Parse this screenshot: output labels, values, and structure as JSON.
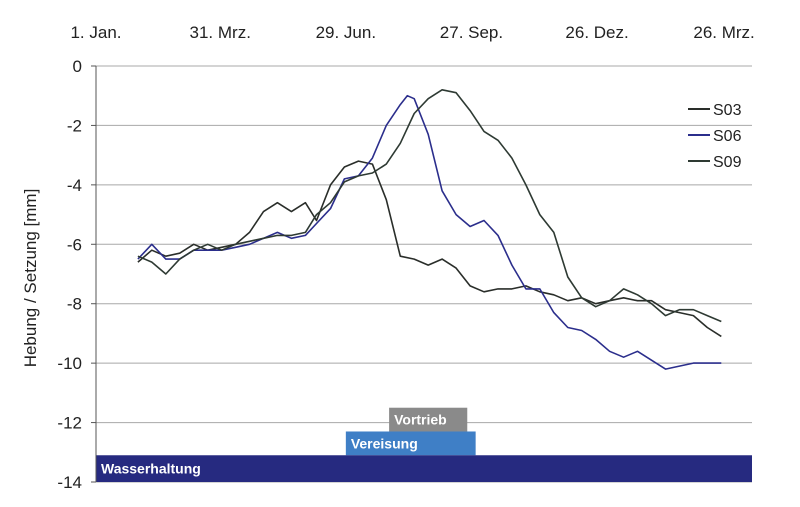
{
  "chart_data": {
    "type": "line",
    "title": "",
    "xlabel": "",
    "ylabel": "Hebung / Setzung [mm]",
    "ylim": [
      -14,
      0
    ],
    "yticks": [
      0,
      -2,
      -4,
      -6,
      -8,
      -10,
      -12,
      -14
    ],
    "xlim": [
      "2011-01-01",
      "2012-04-15"
    ],
    "xticks": [
      {
        "date": "2011-01-01",
        "label": "1. Jan."
      },
      {
        "date": "2011-03-31",
        "label": "31. Mrz."
      },
      {
        "date": "2011-06-29",
        "label": "29. Jun."
      },
      {
        "date": "2011-09-27",
        "label": "27. Sep."
      },
      {
        "date": "2011-12-26",
        "label": "26. Dez."
      },
      {
        "date": "2012-03-26",
        "label": "26. Mrz."
      }
    ],
    "xaxis_position": "top",
    "grid": "horizontal",
    "legend_position": "top-right",
    "series": [
      {
        "name": "S03",
        "color": "#2a2e2a",
        "points": [
          [
            "2011-01-31",
            -6.6
          ],
          [
            "2011-02-10",
            -6.2
          ],
          [
            "2011-02-20",
            -6.4
          ],
          [
            "2011-03-02",
            -6.3
          ],
          [
            "2011-03-12",
            -6.0
          ],
          [
            "2011-03-22",
            -6.2
          ],
          [
            "2011-04-01",
            -6.1
          ],
          [
            "2011-04-11",
            -6.0
          ],
          [
            "2011-04-21",
            -5.6
          ],
          [
            "2011-05-01",
            -4.9
          ],
          [
            "2011-05-11",
            -4.6
          ],
          [
            "2011-05-21",
            -4.9
          ],
          [
            "2011-05-31",
            -4.6
          ],
          [
            "2011-06-08",
            -5.2
          ],
          [
            "2011-06-18",
            -4.0
          ],
          [
            "2011-06-28",
            -3.4
          ],
          [
            "2011-07-08",
            -3.2
          ],
          [
            "2011-07-18",
            -3.3
          ],
          [
            "2011-07-28",
            -4.5
          ],
          [
            "2011-08-07",
            -6.4
          ],
          [
            "2011-08-17",
            -6.5
          ],
          [
            "2011-08-27",
            -6.7
          ],
          [
            "2011-09-06",
            -6.5
          ],
          [
            "2011-09-16",
            -6.8
          ],
          [
            "2011-09-26",
            -7.4
          ],
          [
            "2011-10-06",
            -7.6
          ],
          [
            "2011-10-16",
            -7.5
          ],
          [
            "2011-10-26",
            -7.5
          ],
          [
            "2011-11-05",
            -7.4
          ],
          [
            "2011-11-15",
            -7.6
          ],
          [
            "2011-11-25",
            -7.7
          ],
          [
            "2011-12-05",
            -7.9
          ],
          [
            "2011-12-15",
            -7.8
          ],
          [
            "2011-12-25",
            -8.0
          ],
          [
            "2012-01-04",
            -7.9
          ],
          [
            "2012-01-14",
            -7.8
          ],
          [
            "2012-01-24",
            -7.9
          ],
          [
            "2012-02-03",
            -7.9
          ],
          [
            "2012-02-13",
            -8.2
          ],
          [
            "2012-02-23",
            -8.3
          ],
          [
            "2012-03-04",
            -8.4
          ],
          [
            "2012-03-14",
            -8.8
          ],
          [
            "2012-03-24",
            -9.1
          ]
        ]
      },
      {
        "name": "S06",
        "color": "#2b2e8c",
        "points": [
          [
            "2011-01-31",
            -6.5
          ],
          [
            "2011-02-10",
            -6.0
          ],
          [
            "2011-02-20",
            -6.5
          ],
          [
            "2011-03-02",
            -6.5
          ],
          [
            "2011-03-12",
            -6.2
          ],
          [
            "2011-03-22",
            -6.2
          ],
          [
            "2011-04-01",
            -6.2
          ],
          [
            "2011-04-11",
            -6.1
          ],
          [
            "2011-04-21",
            -6.0
          ],
          [
            "2011-05-01",
            -5.8
          ],
          [
            "2011-05-11",
            -5.6
          ],
          [
            "2011-05-21",
            -5.8
          ],
          [
            "2011-05-31",
            -5.7
          ],
          [
            "2011-06-08",
            -5.3
          ],
          [
            "2011-06-18",
            -4.8
          ],
          [
            "2011-06-28",
            -3.8
          ],
          [
            "2011-07-08",
            -3.7
          ],
          [
            "2011-07-18",
            -3.1
          ],
          [
            "2011-07-28",
            -2.0
          ],
          [
            "2011-08-07",
            -1.3
          ],
          [
            "2011-08-12",
            -1.0
          ],
          [
            "2011-08-17",
            -1.1
          ],
          [
            "2011-08-27",
            -2.3
          ],
          [
            "2011-09-06",
            -4.2
          ],
          [
            "2011-09-16",
            -5.0
          ],
          [
            "2011-09-26",
            -5.4
          ],
          [
            "2011-10-06",
            -5.2
          ],
          [
            "2011-10-16",
            -5.7
          ],
          [
            "2011-10-26",
            -6.7
          ],
          [
            "2011-11-05",
            -7.5
          ],
          [
            "2011-11-15",
            -7.5
          ],
          [
            "2011-11-25",
            -8.3
          ],
          [
            "2011-12-05",
            -8.8
          ],
          [
            "2011-12-15",
            -8.9
          ],
          [
            "2011-12-25",
            -9.2
          ],
          [
            "2012-01-04",
            -9.6
          ],
          [
            "2012-01-14",
            -9.8
          ],
          [
            "2012-01-24",
            -9.6
          ],
          [
            "2012-02-03",
            -9.9
          ],
          [
            "2012-02-13",
            -10.2
          ],
          [
            "2012-02-23",
            -10.1
          ],
          [
            "2012-03-04",
            -10.0
          ],
          [
            "2012-03-14",
            -10.0
          ],
          [
            "2012-03-24",
            -10.0
          ]
        ]
      },
      {
        "name": "S09",
        "color": "#2e3a33",
        "points": [
          [
            "2011-01-31",
            -6.4
          ],
          [
            "2011-02-10",
            -6.6
          ],
          [
            "2011-02-20",
            -7.0
          ],
          [
            "2011-03-02",
            -6.5
          ],
          [
            "2011-03-12",
            -6.2
          ],
          [
            "2011-03-22",
            -6.0
          ],
          [
            "2011-04-01",
            -6.2
          ],
          [
            "2011-04-11",
            -6.0
          ],
          [
            "2011-04-21",
            -5.9
          ],
          [
            "2011-05-01",
            -5.8
          ],
          [
            "2011-05-11",
            -5.7
          ],
          [
            "2011-05-21",
            -5.7
          ],
          [
            "2011-05-31",
            -5.6
          ],
          [
            "2011-06-08",
            -5.0
          ],
          [
            "2011-06-18",
            -4.6
          ],
          [
            "2011-06-28",
            -3.9
          ],
          [
            "2011-07-08",
            -3.7
          ],
          [
            "2011-07-18",
            -3.6
          ],
          [
            "2011-07-28",
            -3.3
          ],
          [
            "2011-08-07",
            -2.6
          ],
          [
            "2011-08-17",
            -1.6
          ],
          [
            "2011-08-27",
            -1.1
          ],
          [
            "2011-09-06",
            -0.8
          ],
          [
            "2011-09-16",
            -0.9
          ],
          [
            "2011-09-26",
            -1.5
          ],
          [
            "2011-10-06",
            -2.2
          ],
          [
            "2011-10-16",
            -2.5
          ],
          [
            "2011-10-26",
            -3.1
          ],
          [
            "2011-11-05",
            -4.0
          ],
          [
            "2011-11-15",
            -5.0
          ],
          [
            "2011-11-25",
            -5.6
          ],
          [
            "2011-12-05",
            -7.1
          ],
          [
            "2011-12-15",
            -7.8
          ],
          [
            "2011-12-25",
            -8.1
          ],
          [
            "2012-01-04",
            -7.9
          ],
          [
            "2012-01-14",
            -7.5
          ],
          [
            "2012-01-24",
            -7.7
          ],
          [
            "2012-02-03",
            -8.0
          ],
          [
            "2012-02-13",
            -8.4
          ],
          [
            "2012-02-23",
            -8.2
          ],
          [
            "2012-03-04",
            -8.2
          ],
          [
            "2012-03-14",
            -8.4
          ],
          [
            "2012-03-24",
            -8.6
          ]
        ]
      }
    ],
    "phases": [
      {
        "label": "Vortrieb",
        "start": "2011-07-30",
        "end": "2011-09-24",
        "y_top": -11.5,
        "y_bottom": -12.3,
        "color": "#8a8a8a"
      },
      {
        "label": "Vereisung",
        "start": "2011-06-29",
        "end": "2011-09-30",
        "y_top": -12.3,
        "y_bottom": -13.1,
        "color": "#3f7fc6"
      },
      {
        "label": "Wasserhaltung",
        "start": "2011-01-01",
        "end": "2012-04-15",
        "y_top": -13.1,
        "y_bottom": -14.0,
        "color": "#262a80"
      }
    ]
  }
}
